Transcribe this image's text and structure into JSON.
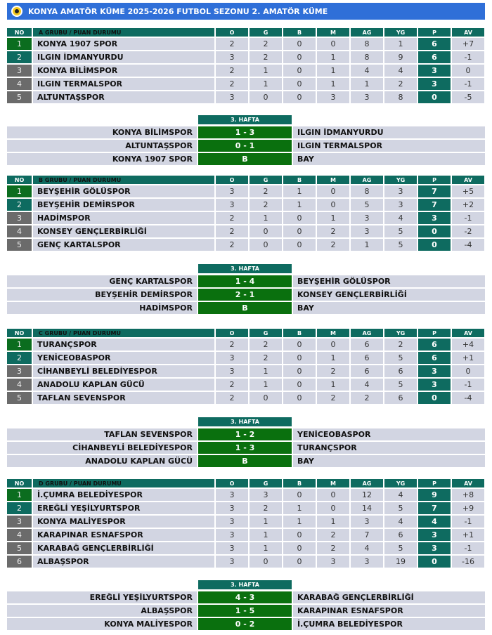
{
  "title": "KONYA AMATÖR KÜME 2025-2026 FUTBOL SEZONU 2. AMATÖR KÜME",
  "columns": [
    "NO",
    "O",
    "G",
    "B",
    "M",
    "AG",
    "YG",
    "P",
    "AV"
  ],
  "colors": {
    "header": "#0e6b60",
    "title_bar": "#2f6fd8",
    "rank1": "#0b6d1f",
    "rank2": "#0e6b60",
    "rank_other": "#6b6b6b",
    "score": "#0a700e",
    "row": "#d2d5e2"
  },
  "groups": [
    {
      "header": "A GRUBU / PUAN DURUMU",
      "week": "3. HAFTA",
      "rows": [
        [
          "1",
          "KONYA 1907 SPOR",
          "2",
          "2",
          "0",
          "0",
          "8",
          "1",
          "6",
          "+7"
        ],
        [
          "2",
          "ILGIN İDMANYURDU",
          "3",
          "2",
          "0",
          "1",
          "8",
          "9",
          "6",
          "-1"
        ],
        [
          "3",
          "KONYA BİLİMSPOR",
          "2",
          "1",
          "0",
          "1",
          "4",
          "4",
          "3",
          "0"
        ],
        [
          "4",
          "ILGIN TERMALSPOR",
          "2",
          "1",
          "0",
          "1",
          "1",
          "2",
          "3",
          "-1"
        ],
        [
          "5",
          "ALTUNTAŞSPOR",
          "3",
          "0",
          "0",
          "3",
          "3",
          "8",
          "0",
          "-5"
        ]
      ],
      "matches": [
        [
          "KONYA BİLİMSPOR",
          "1 - 3",
          "ILGIN İDMANYURDU"
        ],
        [
          "ALTUNTAŞSPOR",
          "0 - 1",
          "ILGIN TERMALSPOR"
        ],
        [
          "KONYA 1907 SPOR",
          "B",
          "BAY"
        ]
      ]
    },
    {
      "header": "B GRUBU / PUAN DURUMU",
      "week": "3. HAFTA",
      "rows": [
        [
          "1",
          "BEYŞEHİR GÖLÜSPOR",
          "3",
          "2",
          "1",
          "0",
          "8",
          "3",
          "7",
          "+5"
        ],
        [
          "2",
          "BEYŞEHİR DEMİRSPOR",
          "3",
          "2",
          "1",
          "0",
          "5",
          "3",
          "7",
          "+2"
        ],
        [
          "3",
          "HADİMSPOR",
          "2",
          "1",
          "0",
          "1",
          "3",
          "4",
          "3",
          "-1"
        ],
        [
          "4",
          "KONSEY GENÇLERBİRLİĞİ",
          "2",
          "0",
          "0",
          "2",
          "3",
          "5",
          "0",
          "-2"
        ],
        [
          "5",
          "GENÇ KARTALSPOR",
          "2",
          "0",
          "0",
          "2",
          "1",
          "5",
          "0",
          "-4"
        ]
      ],
      "matches": [
        [
          "GENÇ KARTALSPOR",
          "1 - 4",
          "BEYŞEHİR GÖLÜSPOR"
        ],
        [
          "BEYŞEHİR DEMİRSPOR",
          "2 - 1",
          "KONSEY GENÇLERBİRLİĞİ"
        ],
        [
          "HADİMSPOR",
          "B",
          "BAY"
        ]
      ]
    },
    {
      "header": "C GRUBU / PUAN DURUMU",
      "week": "3. HAFTA",
      "rows": [
        [
          "1",
          "TURANÇSPOR",
          "2",
          "2",
          "0",
          "0",
          "6",
          "2",
          "6",
          "+4"
        ],
        [
          "2",
          "YENİCEOBASPOR",
          "3",
          "2",
          "0",
          "1",
          "6",
          "5",
          "6",
          "+1"
        ],
        [
          "3",
          "CİHANBEYLİ BELEDİYESPOR",
          "3",
          "1",
          "0",
          "2",
          "6",
          "6",
          "3",
          "0"
        ],
        [
          "4",
          "ANADOLU KAPLAN GÜCÜ",
          "2",
          "1",
          "0",
          "1",
          "4",
          "5",
          "3",
          "-1"
        ],
        [
          "5",
          "TAFLAN SEVENSPOR",
          "2",
          "0",
          "0",
          "2",
          "2",
          "6",
          "0",
          "-4"
        ]
      ],
      "matches": [
        [
          "TAFLAN SEVENSPOR",
          "1 - 2",
          "YENİCEOBASPOR"
        ],
        [
          "CİHANBEYLİ BELEDİYESPOR",
          "1 - 3",
          "TURANÇSPOR"
        ],
        [
          "ANADOLU KAPLAN GÜCÜ",
          "B",
          "BAY"
        ]
      ]
    },
    {
      "header": "D GRUBU / PUAN DURUMU",
      "week": "3. HAFTA",
      "rows": [
        [
          "1",
          "İ.ÇUMRA BELEDİYESPOR",
          "3",
          "3",
          "0",
          "0",
          "12",
          "4",
          "9",
          "+8"
        ],
        [
          "2",
          "EREĞLİ YEŞİLYURTSPOR",
          "3",
          "2",
          "1",
          "0",
          "14",
          "5",
          "7",
          "+9"
        ],
        [
          "3",
          "KONYA MALİYESPOR",
          "3",
          "1",
          "1",
          "1",
          "3",
          "4",
          "4",
          "-1"
        ],
        [
          "4",
          "KARAPINAR ESNAFSPOR",
          "3",
          "1",
          "0",
          "2",
          "7",
          "6",
          "3",
          "+1"
        ],
        [
          "5",
          "KARABAĞ GENÇLERBİRLİĞİ",
          "3",
          "1",
          "0",
          "2",
          "4",
          "5",
          "3",
          "-1"
        ],
        [
          "6",
          "ALBAŞSPOR",
          "3",
          "0",
          "0",
          "3",
          "3",
          "19",
          "0",
          "-16"
        ]
      ],
      "matches": [
        [
          "EREĞLİ YEŞİLYURTSPOR",
          "4 - 3",
          "KARABAĞ GENÇLERBİRLİĞİ"
        ],
        [
          "ALBAŞSPOR",
          "1 - 5",
          "KARAPINAR ESNAFSPOR"
        ],
        [
          "KONYA MALİYESPOR",
          "0 - 2",
          "İ.ÇUMRA BELEDİYESPOR"
        ]
      ]
    }
  ]
}
